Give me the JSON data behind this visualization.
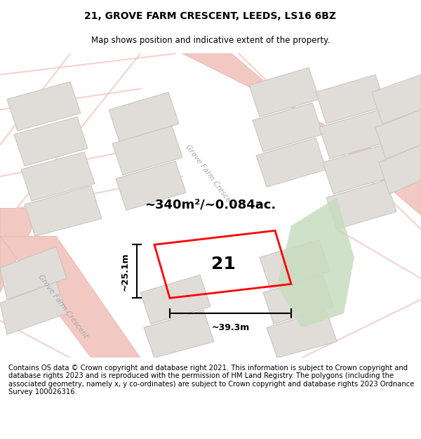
{
  "title": "21, GROVE FARM CRESCENT, LEEDS, LS16 6BZ",
  "subtitle": "Map shows position and indicative extent of the property.",
  "footer": "Contains OS data © Crown copyright and database right 2021. This information is subject to Crown copyright and database rights 2023 and is reproduced with the permission of HM Land Registry. The polygons (including the associated geometry, namely x, y co-ordinates) are subject to Crown copyright and database rights 2023 Ordnance Survey 100026316.",
  "area_label": "~340m²/~0.084ac.",
  "number_label": "21",
  "dim_width": "~39.3m",
  "dim_height": "~25.1m",
  "map_bg": "#f2f0ed",
  "road_color": "#f2c8c2",
  "road_edge_color": "#e8b0aa",
  "block_fill": "#e0ddd8",
  "block_edge": "#c8c4be",
  "property_outline": "#ff0000",
  "highlight_fill": "#c8dcc0",
  "road_label_color": "#aaaaaa",
  "title_fontsize": 10,
  "subtitle_fontsize": 8.5,
  "footer_fontsize": 7.2,
  "area_fontsize": 13,
  "number_fontsize": 18,
  "dim_fontsize": 9
}
